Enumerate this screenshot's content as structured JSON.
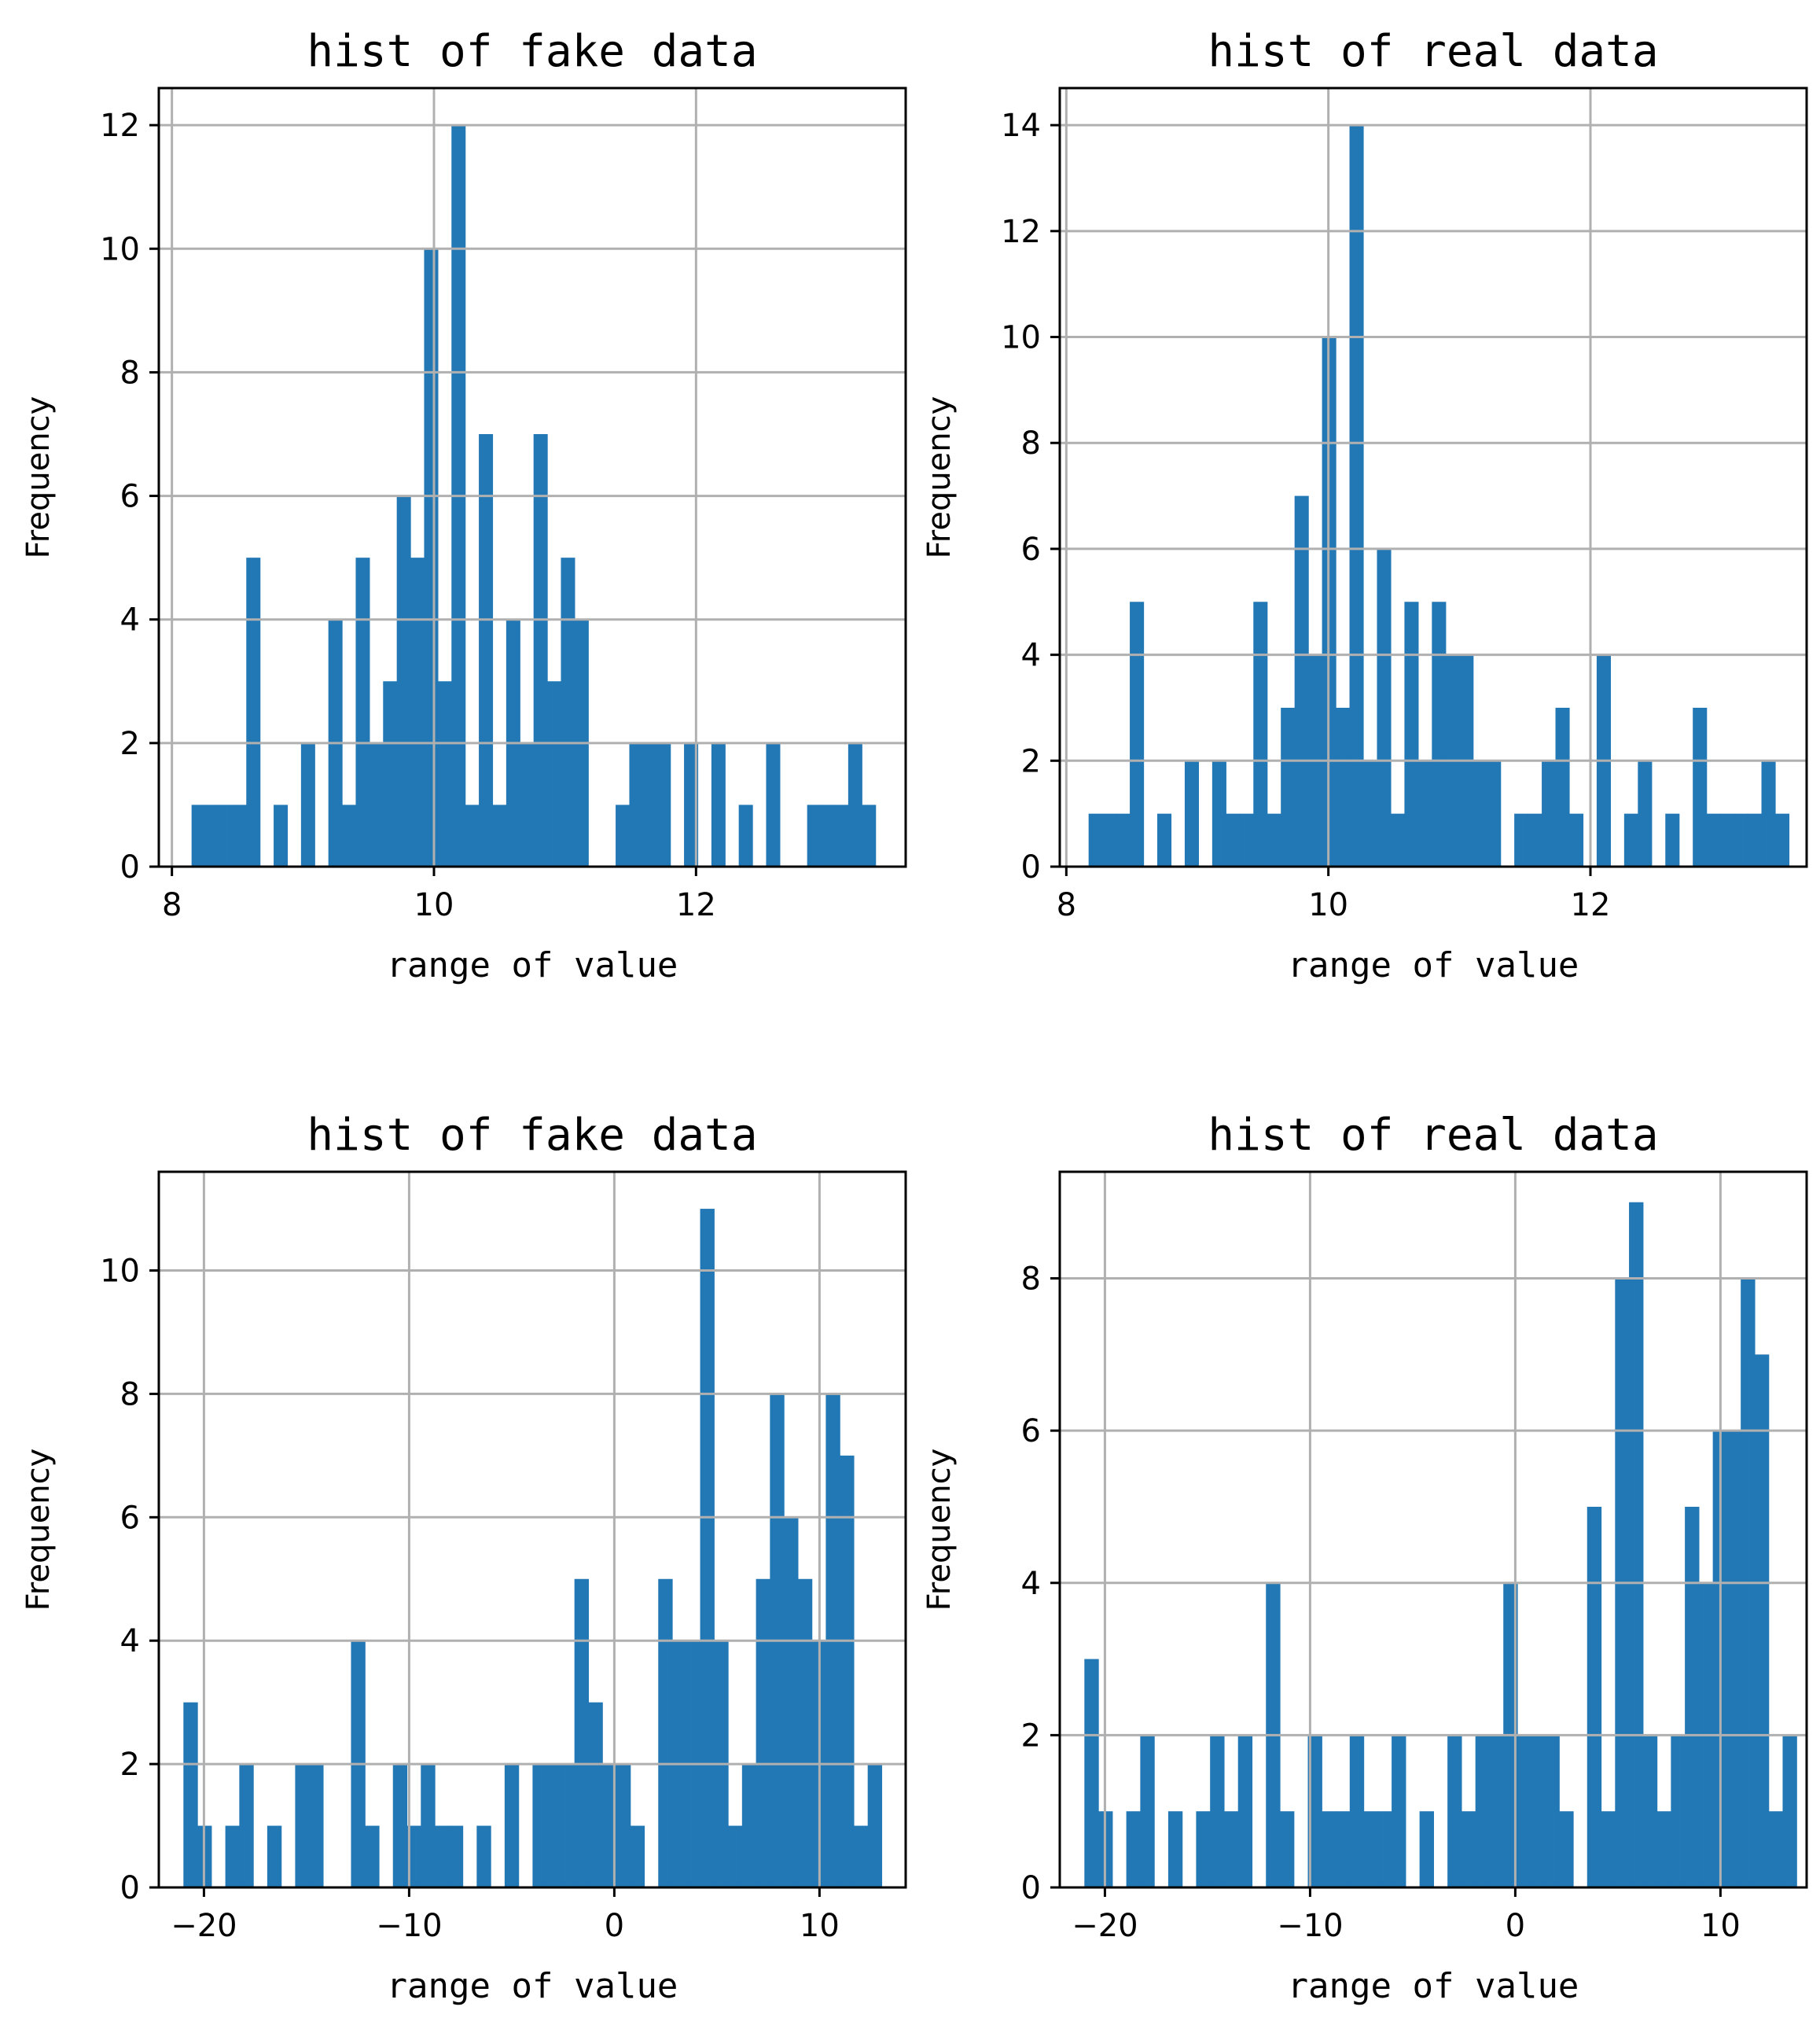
{
  "colors": {
    "bar": "#2277b5",
    "grid": "#b0b0b0",
    "axis": "#000000"
  },
  "chart_data": [
    {
      "type": "bar",
      "title": "hist of fake data",
      "xlabel": "range of value",
      "ylabel": "Frequency",
      "xlim": [
        7.9,
        13.6
      ],
      "ylim": [
        0,
        12.6
      ],
      "xticks": [
        8,
        10,
        12
      ],
      "yticks": [
        0,
        2,
        4,
        6,
        8,
        10,
        12
      ],
      "grid": true,
      "bin_start": 8.15,
      "bin_width": 0.1044,
      "values": [
        1,
        1,
        1,
        1,
        5,
        0,
        1,
        0,
        2,
        0,
        4,
        1,
        5,
        2,
        3,
        6,
        5,
        10,
        3,
        12,
        1,
        7,
        1,
        4,
        2,
        7,
        3,
        5,
        4,
        0,
        0,
        1,
        2,
        2,
        2,
        0,
        2,
        0,
        2,
        0,
        1,
        0,
        2,
        0,
        0,
        1,
        1,
        1,
        2,
        1
      ]
    },
    {
      "type": "bar",
      "title": "hist of real data",
      "xlabel": "range of value",
      "ylabel": "Frequency",
      "xlim": [
        7.95,
        13.65
      ],
      "ylim": [
        0,
        14.7
      ],
      "xticks": [
        8,
        10,
        12
      ],
      "yticks": [
        0,
        2,
        4,
        6,
        8,
        10,
        12,
        14
      ],
      "grid": true,
      "bin_start": 8.17,
      "bin_width": 0.1048,
      "values": [
        1,
        1,
        1,
        5,
        0,
        1,
        0,
        2,
        0,
        2,
        1,
        1,
        5,
        1,
        3,
        7,
        4,
        10,
        3,
        14,
        2,
        6,
        1,
        5,
        2,
        5,
        4,
        4,
        2,
        2,
        0,
        1,
        1,
        2,
        3,
        1,
        0,
        4,
        0,
        1,
        2,
        0,
        1,
        0,
        3,
        1,
        1,
        1,
        1,
        2,
        1
      ]
    },
    {
      "type": "bar",
      "title": "hist of fake data",
      "xlabel": "range of value",
      "ylabel": "Frequency",
      "xlim": [
        -22.2,
        14.2
      ],
      "ylim": [
        0,
        11.6
      ],
      "xticks": [
        -20,
        -10,
        0,
        10
      ],
      "yticks": [
        0,
        2,
        4,
        6,
        8,
        10
      ],
      "grid": true,
      "bin_start": -21.0,
      "bin_width": 0.6806,
      "values": [
        3,
        1,
        0,
        1,
        2,
        0,
        1,
        0,
        2,
        2,
        0,
        0,
        4,
        1,
        0,
        2,
        1,
        2,
        1,
        1,
        0,
        1,
        0,
        2,
        0,
        2,
        2,
        2,
        5,
        3,
        2,
        2,
        1,
        0,
        5,
        4,
        4,
        11,
        4,
        1,
        2,
        5,
        8,
        6,
        5,
        4,
        8,
        7,
        1,
        2
      ]
    },
    {
      "type": "bar",
      "title": "hist of real data",
      "xlabel": "range of value",
      "ylabel": "Frequency",
      "xlim": [
        -22.2,
        14.2
      ],
      "ylim": [
        0,
        9.4
      ],
      "xticks": [
        -20,
        -10,
        0,
        10
      ],
      "yticks": [
        0,
        2,
        4,
        6,
        8
      ],
      "grid": true,
      "bin_start": -21.0,
      "bin_width": 0.6806,
      "values": [
        3,
        1,
        0,
        1,
        2,
        0,
        1,
        0,
        1,
        2,
        1,
        2,
        0,
        4,
        1,
        0,
        2,
        1,
        1,
        2,
        1,
        1,
        2,
        0,
        1,
        0,
        2,
        1,
        2,
        2,
        4,
        2,
        2,
        2,
        1,
        0,
        5,
        1,
        8,
        9,
        2,
        1,
        2,
        5,
        4,
        6,
        6,
        8,
        7,
        1,
        2
      ]
    }
  ]
}
